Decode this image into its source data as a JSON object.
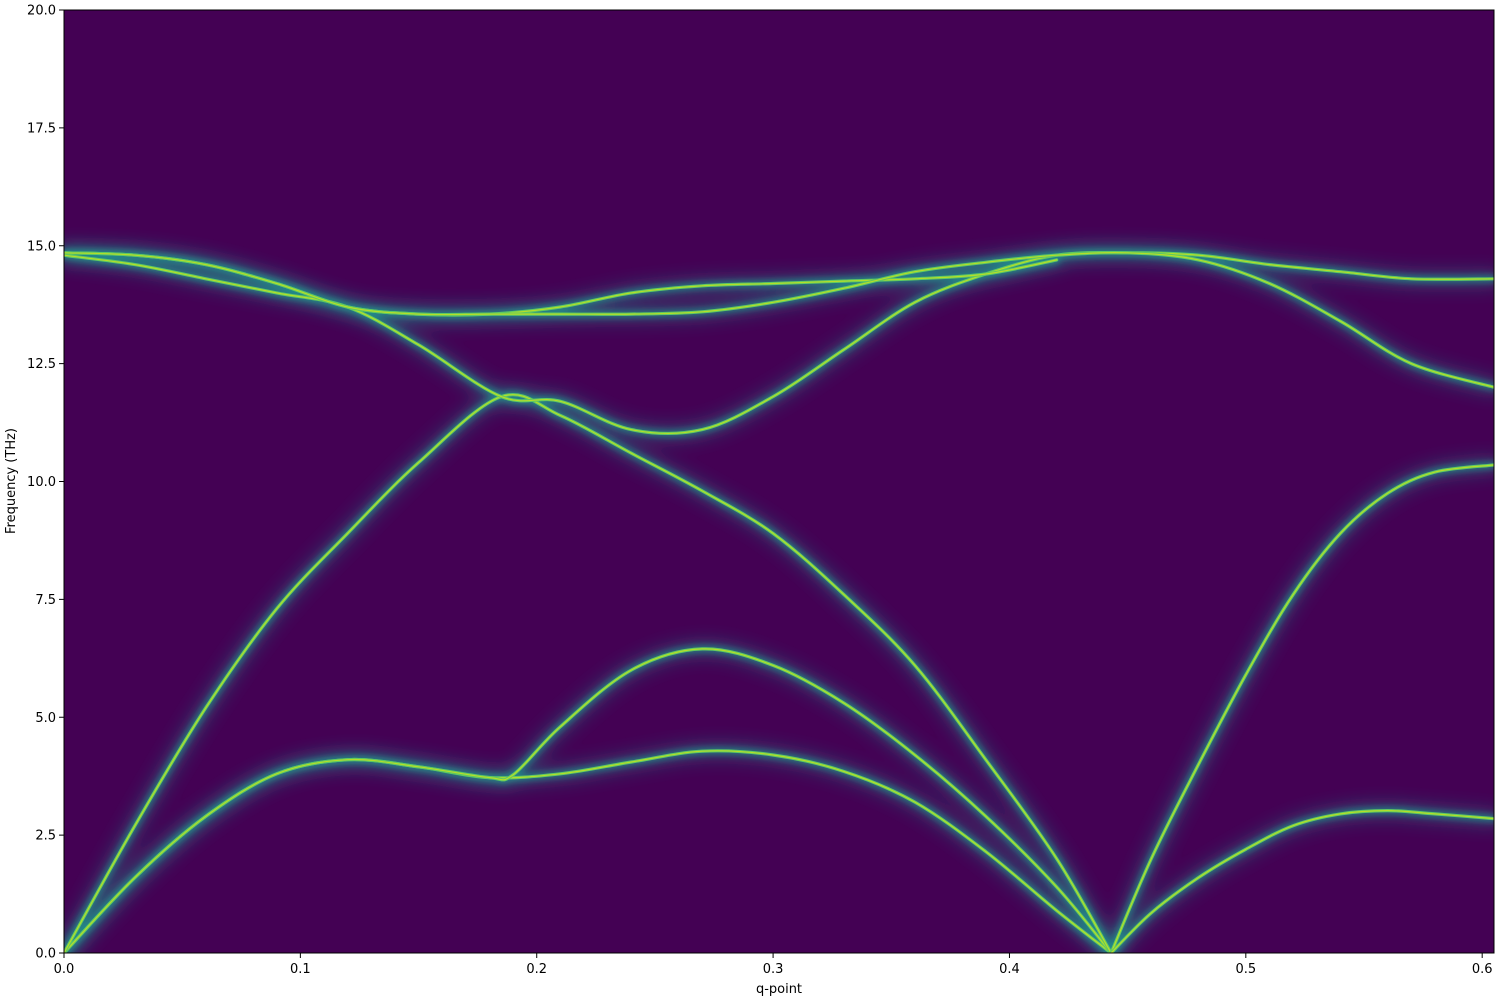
{
  "chart_data": {
    "type": "heatmap",
    "title": "",
    "xlabel": "q-point",
    "ylabel": "Frequency (THz)",
    "xlim": [
      0.0,
      0.605
    ],
    "ylim": [
      0.0,
      20.0
    ],
    "xticks": [
      "0.0",
      "0.1",
      "0.2",
      "0.3",
      "0.4",
      "0.5",
      "0.6"
    ],
    "yticks": [
      "0.0",
      "2.5",
      "5.0",
      "7.5",
      "10.0",
      "12.5",
      "15.0",
      "17.5",
      "20.0"
    ],
    "grid": false,
    "colormap": "viridis",
    "colors": {
      "background": "#440154",
      "glow": "#21918c",
      "line": "#5ec962",
      "peak": "#b5de2b"
    },
    "series": [
      {
        "x": [
          0.0,
          0.03,
          0.06,
          0.09,
          0.12,
          0.15,
          0.18,
          0.21,
          0.24,
          0.27,
          0.3,
          0.33,
          0.36,
          0.39,
          0.42,
          0.443
        ],
        "y": [
          0.0,
          1.6,
          2.9,
          3.8,
          4.1,
          3.95,
          3.72,
          3.8,
          4.05,
          4.28,
          4.2,
          3.85,
          3.2,
          2.15,
          0.9,
          0.0
        ]
      },
      {
        "x": [
          0.0,
          0.03,
          0.06,
          0.09,
          0.12,
          0.15,
          0.18,
          0.19,
          0.21,
          0.24,
          0.27,
          0.3,
          0.33,
          0.36,
          0.39,
          0.42,
          0.443
        ],
        "y": [
          0.0,
          1.6,
          2.9,
          3.8,
          4.1,
          3.95,
          3.72,
          3.78,
          4.8,
          6.0,
          6.45,
          6.1,
          5.3,
          4.2,
          2.9,
          1.4,
          0.0
        ]
      },
      {
        "x": [
          0.0,
          0.03,
          0.06,
          0.09,
          0.12,
          0.15,
          0.185,
          0.21,
          0.24,
          0.27,
          0.3,
          0.33,
          0.36,
          0.39,
          0.42,
          0.443
        ],
        "y": [
          0.0,
          2.7,
          5.2,
          7.3,
          8.9,
          10.4,
          11.8,
          11.4,
          10.6,
          9.8,
          8.9,
          7.6,
          6.1,
          4.1,
          2.0,
          0.0
        ]
      },
      {
        "x": [
          0.0,
          0.03,
          0.06,
          0.09,
          0.12,
          0.15,
          0.185,
          0.21,
          0.24,
          0.27,
          0.3,
          0.33,
          0.36,
          0.39,
          0.42,
          0.45,
          0.48,
          0.51,
          0.54,
          0.57,
          0.605
        ],
        "y": [
          14.8,
          14.6,
          14.3,
          14.0,
          13.7,
          12.9,
          11.8,
          11.7,
          11.1,
          11.1,
          11.8,
          12.8,
          13.8,
          14.4,
          14.8,
          14.85,
          14.8,
          14.6,
          14.45,
          14.3,
          14.3
        ]
      },
      {
        "x": [
          0.0,
          0.03,
          0.06,
          0.09,
          0.12,
          0.15,
          0.18,
          0.21,
          0.24,
          0.27,
          0.3,
          0.33,
          0.36,
          0.39,
          0.42
        ],
        "y": [
          14.85,
          14.8,
          14.6,
          14.2,
          13.7,
          13.55,
          13.55,
          13.7,
          14.0,
          14.15,
          14.2,
          14.25,
          14.3,
          14.4,
          14.7
        ]
      },
      {
        "x": [
          0.0,
          0.03,
          0.06,
          0.09,
          0.12,
          0.15,
          0.18,
          0.21,
          0.24,
          0.27,
          0.3,
          0.33,
          0.36,
          0.39,
          0.42,
          0.45,
          0.48,
          0.51,
          0.54,
          0.57,
          0.605
        ],
        "y": [
          14.85,
          14.8,
          14.6,
          14.2,
          13.7,
          13.55,
          13.55,
          13.55,
          13.55,
          13.6,
          13.8,
          14.1,
          14.45,
          14.65,
          14.8,
          14.85,
          14.7,
          14.2,
          13.4,
          12.5,
          12.0
        ]
      },
      {
        "x": [
          0.443,
          0.46,
          0.48,
          0.5,
          0.52,
          0.54,
          0.56,
          0.58,
          0.605
        ],
        "y": [
          0.0,
          2.0,
          4.0,
          5.9,
          7.6,
          8.9,
          9.75,
          10.2,
          10.35
        ]
      },
      {
        "x": [
          0.443,
          0.46,
          0.48,
          0.5,
          0.52,
          0.54,
          0.56,
          0.58,
          0.605
        ],
        "y": [
          0.0,
          0.85,
          1.6,
          2.2,
          2.7,
          2.95,
          3.02,
          2.95,
          2.85
        ]
      }
    ]
  }
}
